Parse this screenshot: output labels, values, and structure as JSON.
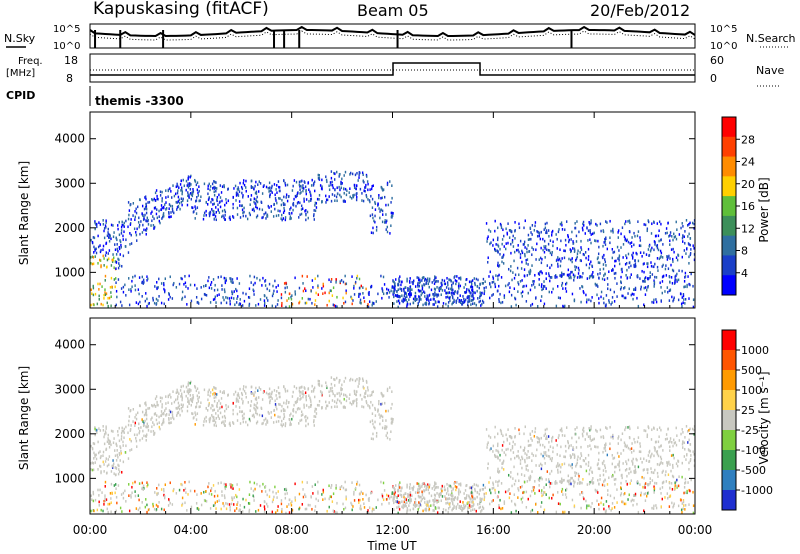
{
  "header": {
    "station": "Kapuskasing (fitACF)",
    "beam": "Beam 05",
    "date": "20/Feb/2012"
  },
  "panels": {
    "noise": {
      "left_label": "N.Sky",
      "left_ticks": [
        "10^5",
        "10^0"
      ],
      "right_label": "N.Search",
      "right_ticks": [
        "10^5",
        "10^0"
      ]
    },
    "freq": {
      "left_label_line1": "Freq.",
      "left_label_line2": "[MHz]",
      "left_ticks": [
        "18",
        "8"
      ],
      "right_label": "Nave",
      "right_ticks": [
        "60",
        "0"
      ]
    },
    "cpid": {
      "label": "CPID",
      "program": "themis -3300"
    }
  },
  "chart_data": [
    {
      "type": "heatmap",
      "name": "power",
      "ylabel": "Slant Range [km]",
      "yticks": [
        1000,
        2000,
        3000,
        4000
      ],
      "ylim": [
        200,
        4600
      ],
      "colorbar_label": "Power [dB]",
      "colorbar_ticks": [
        "28",
        "24",
        "20",
        "16",
        "12",
        "8",
        "4"
      ],
      "colors": [
        "#0000ff",
        "#1a3fc8",
        "#2f6fa0",
        "#3c8f5a",
        "#5fbf3a",
        "#ffd000",
        "#ff8c00",
        "#ff4000",
        "#ff0000"
      ]
    },
    {
      "type": "heatmap",
      "name": "velocity",
      "ylabel": "Slant Range [km]",
      "yticks": [
        1000,
        2000,
        3000,
        4000
      ],
      "ylim": [
        200,
        4600
      ],
      "colorbar_label": "Velocity [m s⁻¹]",
      "colorbar_ticks": [
        "1000",
        "500",
        "100",
        "25",
        "-25",
        "-100",
        "-500",
        "-1000"
      ],
      "colors": [
        "#1f2fd0",
        "#2f7fbf",
        "#3aa04f",
        "#7fd040",
        "#c8c8c0",
        "#ffd24a",
        "#ff9a00",
        "#ff5500",
        "#ff0000"
      ]
    }
  ],
  "time_axis": {
    "ticks": [
      "00:00",
      "04:00",
      "08:00",
      "12:00",
      "16:00",
      "20:00",
      "00:00"
    ],
    "label": "Time UT"
  }
}
